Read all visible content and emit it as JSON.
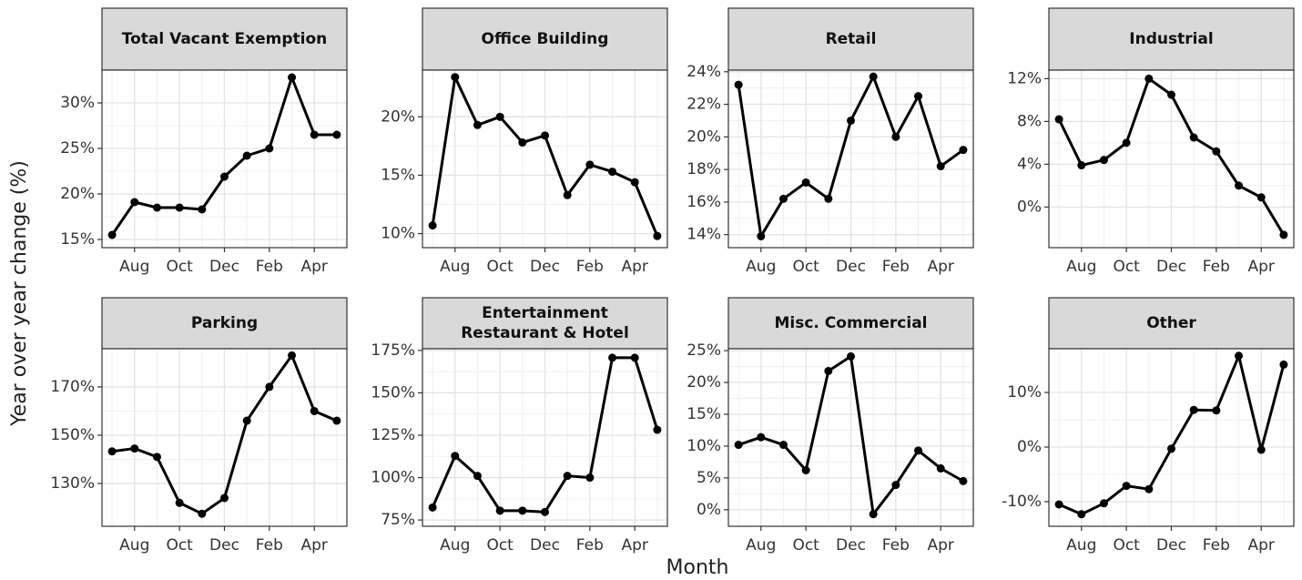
{
  "ylabel": "Year over year change (%)",
  "xlabel": "Month",
  "chart_data": [
    {
      "type": "line",
      "title": "Total Vacant Exemption",
      "color": "#000000",
      "grid": true,
      "categories": [
        null,
        "Aug",
        null,
        "Oct",
        null,
        "Dec",
        null,
        "Feb",
        null,
        "Apr",
        null
      ],
      "values": [
        15.5,
        19.1,
        18.5,
        18.5,
        18.3,
        21.9,
        24.2,
        25.0,
        32.8,
        26.5,
        26.5
      ],
      "ylim": [
        14.1,
        33.6
      ],
      "yticks": [
        {
          "value": 15,
          "label": "15%"
        },
        {
          "value": 20,
          "label": "20%"
        },
        {
          "value": 25,
          "label": "25%"
        },
        {
          "value": 30,
          "label": "30%"
        }
      ]
    },
    {
      "type": "line",
      "title": "Office Building",
      "color": "#000000",
      "grid": true,
      "categories": [
        null,
        "Aug",
        null,
        "Oct",
        null,
        "Dec",
        null,
        "Feb",
        null,
        "Apr",
        null
      ],
      "values": [
        10.7,
        23.4,
        19.3,
        20.0,
        17.8,
        18.4,
        13.3,
        15.9,
        15.3,
        14.4,
        9.8
      ],
      "ylim": [
        8.8,
        24.0
      ],
      "yticks": [
        {
          "value": 10,
          "label": "10%"
        },
        {
          "value": 15,
          "label": "15%"
        },
        {
          "value": 20,
          "label": "20%"
        }
      ]
    },
    {
      "type": "line",
      "title": "Retail",
      "color": "#000000",
      "grid": true,
      "categories": [
        null,
        "Aug",
        null,
        "Oct",
        null,
        "Dec",
        null,
        "Feb",
        null,
        "Apr",
        null
      ],
      "values": [
        23.2,
        13.9,
        16.2,
        17.2,
        16.2,
        21.0,
        23.7,
        20.0,
        22.5,
        18.2,
        19.2
      ],
      "ylim": [
        13.2,
        24.1
      ],
      "yticks": [
        {
          "value": 14,
          "label": "14%"
        },
        {
          "value": 16,
          "label": "16%"
        },
        {
          "value": 18,
          "label": "18%"
        },
        {
          "value": 20,
          "label": "20%"
        },
        {
          "value": 22,
          "label": "22%"
        },
        {
          "value": 24,
          "label": "24%"
        }
      ]
    },
    {
      "type": "line",
      "title": "Industrial",
      "color": "#000000",
      "grid": true,
      "categories": [
        null,
        "Aug",
        null,
        "Oct",
        null,
        "Dec",
        null,
        "Feb",
        null,
        "Apr",
        null
      ],
      "values": [
        8.2,
        3.9,
        4.4,
        6.0,
        12.0,
        10.5,
        6.5,
        5.2,
        2.0,
        0.9,
        -2.6
      ],
      "ylim": [
        -3.8,
        12.8
      ],
      "yticks": [
        {
          "value": 0,
          "label": "0%"
        },
        {
          "value": 4,
          "label": "4%"
        },
        {
          "value": 8,
          "label": "8%"
        },
        {
          "value": 12,
          "label": "12%"
        }
      ]
    },
    {
      "type": "line",
      "title": "Parking",
      "color": "#000000",
      "grid": true,
      "categories": [
        null,
        "Aug",
        null,
        "Oct",
        null,
        "Dec",
        null,
        "Feb",
        null,
        "Apr",
        null
      ],
      "values": [
        143.3,
        144.5,
        141,
        122,
        117.5,
        124,
        156,
        170,
        183,
        160,
        156
      ],
      "ylim": [
        112.3,
        185.8
      ],
      "yticks": [
        {
          "value": 130,
          "label": "130%"
        },
        {
          "value": 150,
          "label": "150%"
        },
        {
          "value": 170,
          "label": "170%"
        }
      ]
    },
    {
      "type": "line",
      "title": [
        "Entertainment",
        "Restaurant & Hotel"
      ],
      "color": "#000000",
      "grid": true,
      "categories": [
        null,
        "Aug",
        null,
        "Oct",
        null,
        "Dec",
        null,
        "Feb",
        null,
        "Apr",
        null
      ],
      "values": [
        82.4,
        112.8,
        101,
        80.5,
        80.5,
        79.7,
        101,
        100,
        170.7,
        170.7,
        128.2
      ],
      "ylim": [
        71.3,
        176
      ],
      "yticks": [
        {
          "value": 75,
          "label": "75%"
        },
        {
          "value": 100,
          "label": "100%"
        },
        {
          "value": 125,
          "label": "125%"
        },
        {
          "value": 150,
          "label": "150%"
        },
        {
          "value": 175,
          "label": "175%"
        }
      ]
    },
    {
      "type": "line",
      "title": "Misc. Commercial",
      "color": "#000000",
      "grid": true,
      "categories": [
        null,
        "Aug",
        null,
        "Oct",
        null,
        "Dec",
        null,
        "Feb",
        null,
        "Apr",
        null
      ],
      "values": [
        10.2,
        11.4,
        10.2,
        6.2,
        21.8,
        24.1,
        -0.7,
        3.9,
        9.3,
        6.5,
        4.5
      ],
      "ylim": [
        -2.6,
        25.3
      ],
      "yticks": [
        {
          "value": 0,
          "label": "0%"
        },
        {
          "value": 5,
          "label": "5%"
        },
        {
          "value": 10,
          "label": "10%"
        },
        {
          "value": 15,
          "label": "15%"
        },
        {
          "value": 20,
          "label": "20%"
        },
        {
          "value": 25,
          "label": "25%"
        }
      ]
    },
    {
      "type": "line",
      "title": "Other",
      "color": "#000000",
      "grid": true,
      "categories": [
        null,
        "Aug",
        null,
        "Oct",
        null,
        "Dec",
        null,
        "Feb",
        null,
        "Apr",
        null
      ],
      "values": [
        -10.5,
        -12.3,
        -10.3,
        -7.1,
        -7.7,
        -0.3,
        6.8,
        6.7,
        16.7,
        -0.5,
        15.1
      ],
      "ylim": [
        -14.5,
        18
      ],
      "yticks": [
        {
          "value": -10,
          "label": "-10%"
        },
        {
          "value": 0,
          "label": "0%"
        },
        {
          "value": 10,
          "label": "10%"
        }
      ]
    }
  ]
}
